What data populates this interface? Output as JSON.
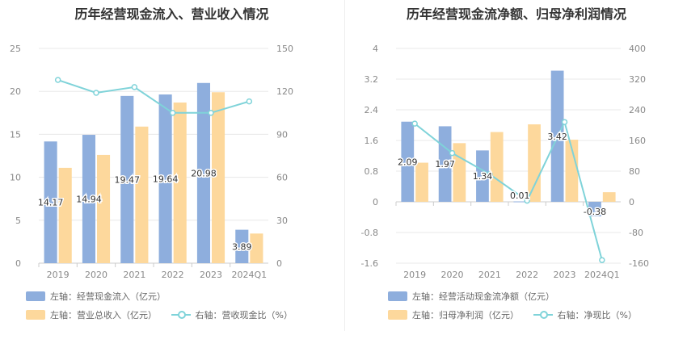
{
  "chart_data": [
    {
      "type": "bar",
      "title": "历年经营现金流入、营业收入情况",
      "categories": [
        "2019",
        "2020",
        "2021",
        "2022",
        "2023",
        "2024Q1"
      ],
      "left_axis": {
        "min": 0,
        "max": 25,
        "ticks": [
          "0",
          "5",
          "10",
          "15",
          "20",
          "25"
        ]
      },
      "right_axis": {
        "min": 0,
        "max": 150,
        "ticks": [
          "0",
          "30",
          "60",
          "90",
          "120",
          "150"
        ]
      },
      "series": [
        {
          "name": "左轴：经营现金流入（亿元）",
          "type": "bar",
          "axis": "left",
          "color": "#8eaedd",
          "values": [
            14.17,
            14.94,
            19.47,
            19.64,
            20.98,
            3.89
          ],
          "labels": [
            "14.17",
            "14.94",
            "19.47",
            "19.64",
            "20.98",
            "3.89"
          ]
        },
        {
          "name": "左轴：营业总收入（亿元）",
          "type": "bar",
          "axis": "left",
          "color": "#fdd89c",
          "values": [
            11.1,
            12.6,
            15.9,
            18.7,
            19.9,
            3.45
          ]
        },
        {
          "name": "右轴：营收现金比（%）",
          "type": "line",
          "axis": "right",
          "color": "#7fd3d9",
          "values": [
            128,
            119,
            123,
            105,
            105,
            113
          ]
        }
      ]
    },
    {
      "type": "bar",
      "title": "历年经营现金流净额、归母净利润情况",
      "categories": [
        "2019",
        "2020",
        "2021",
        "2022",
        "2023",
        "2024Q1"
      ],
      "left_axis": {
        "min": -1.6,
        "max": 4,
        "ticks": [
          "-1.6",
          "-0.8",
          "0",
          "0.8",
          "1.6",
          "2.4",
          "3.2",
          "4"
        ]
      },
      "right_axis": {
        "min": -160,
        "max": 400,
        "ticks": [
          "-160",
          "-80",
          "0",
          "80",
          "160",
          "240",
          "320",
          "400"
        ]
      },
      "series": [
        {
          "name": "左轴：经营活动现金流净额（亿元）",
          "type": "bar",
          "axis": "left",
          "color": "#8eaedd",
          "values": [
            2.09,
            1.97,
            1.34,
            0.01,
            3.42,
            -0.38
          ],
          "labels": [
            "2.09",
            "1.97",
            "1.34",
            "0.01",
            "3.42",
            "-0.38"
          ]
        },
        {
          "name": "左轴：归母净利润（亿元）",
          "type": "bar",
          "axis": "left",
          "color": "#fdd89c",
          "values": [
            1.02,
            1.53,
            1.82,
            2.02,
            1.62,
            0.25
          ]
        },
        {
          "name": "右轴：净现比（%）",
          "type": "line",
          "axis": "right",
          "color": "#7fd3d9",
          "values": [
            204,
            127,
            72,
            3,
            208,
            -152
          ]
        }
      ]
    }
  ]
}
